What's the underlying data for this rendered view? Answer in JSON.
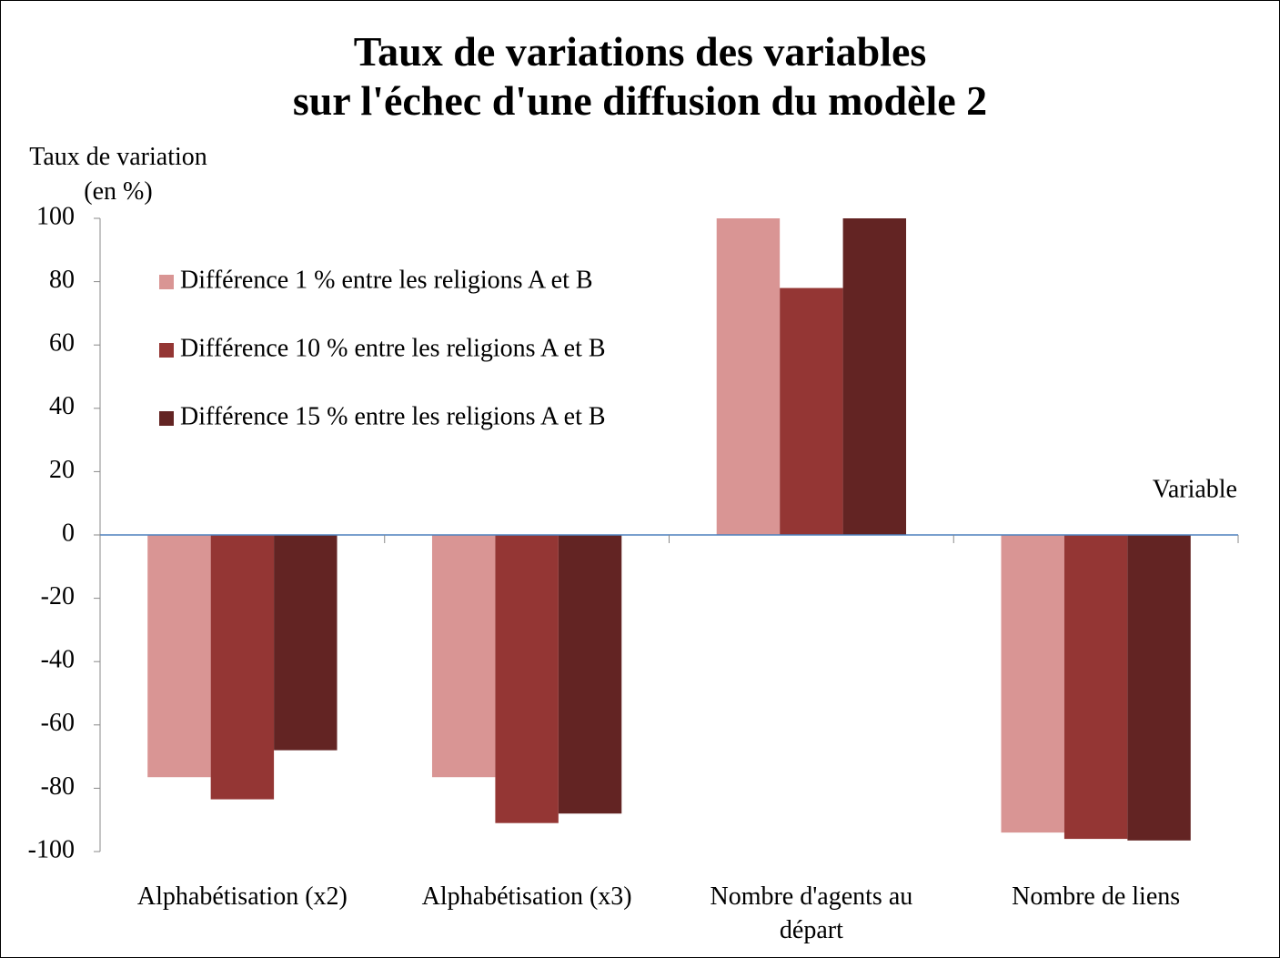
{
  "chart_data": {
    "type": "bar",
    "title": "Taux de variations des variables\nsur l'échec d'une diffusion du modèle 2",
    "y_label": "Taux de variation\n(en %)",
    "x_label": "Variable",
    "categories": [
      "Alphabétisation (x2)",
      "Alphabétisation (x3)",
      "Nombre d'agents au départ",
      "Nombre de liens"
    ],
    "series": [
      {
        "name": "Différence 1 % entre les religions A et B",
        "color": "#d99594",
        "values": [
          -76.5,
          -76.5,
          100,
          -94
        ]
      },
      {
        "name": "Différence 10 % entre les religions A et B",
        "color": "#943634",
        "values": [
          -83.5,
          -91,
          78,
          -96
        ]
      },
      {
        "name": "Différence 15 % entre les religions A et B",
        "color": "#632423",
        "values": [
          -68,
          -88,
          100,
          -96.5
        ]
      }
    ],
    "ylim": [
      -100,
      100
    ],
    "yticks": [
      -100,
      -80,
      -60,
      -40,
      -20,
      0,
      20,
      40,
      60,
      80,
      100
    ],
    "grid": false,
    "legend": "top-left"
  }
}
